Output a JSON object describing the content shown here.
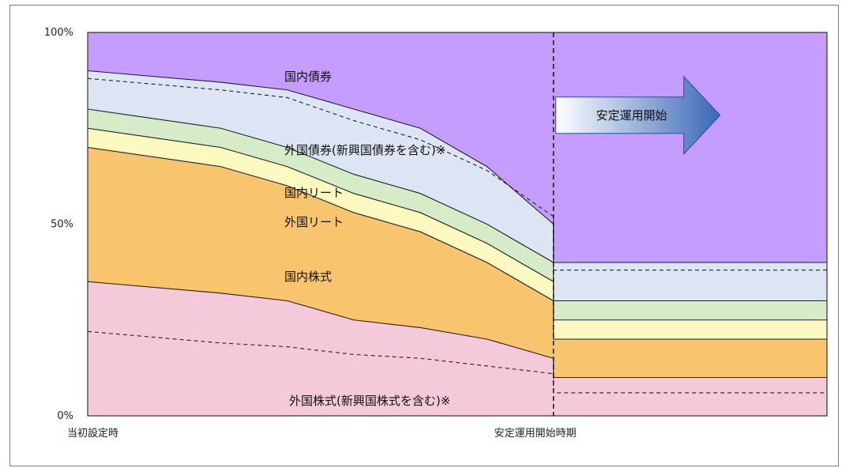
{
  "chart_data": {
    "type": "area",
    "stacked": true,
    "title": "",
    "xlabel": "",
    "ylabel": "",
    "ylim": [
      0,
      100
    ],
    "y_ticks": [
      "0%",
      "50%",
      "100%"
    ],
    "x_tick_labels": [
      "当初設定時",
      "安定運用開始時期"
    ],
    "x": [
      0,
      0.18,
      0.27,
      0.36,
      0.45,
      0.54,
      0.63,
      1.0
    ],
    "series": [
      {
        "name": "外国株式(新興国株式を含む)※",
        "color": "#f4c9d9",
        "values": [
          35,
          32,
          30,
          25,
          23,
          20,
          15,
          10
        ]
      },
      {
        "name": "国内株式",
        "color": "#f9c46e",
        "values": [
          35,
          33,
          30,
          28,
          25,
          20,
          15,
          10
        ]
      },
      {
        "name": "外国リート",
        "color": "#fbf8c0",
        "values": [
          5,
          5,
          5,
          5,
          5,
          5,
          5,
          5
        ]
      },
      {
        "name": "国内リート",
        "color": "#d6ebc8",
        "values": [
          5,
          5,
          5,
          5,
          5,
          5,
          5,
          5
        ]
      },
      {
        "name": "外国債券(新興国債券を含む)※",
        "color": "#dde5f4",
        "values": [
          10,
          12,
          15,
          17,
          17,
          15,
          10,
          10
        ]
      },
      {
        "name": "国内債券",
        "color": "#c59cff",
        "values": [
          10,
          13,
          15,
          20,
          25,
          35,
          50,
          60
        ]
      }
    ],
    "emerging_split": {
      "stock_line": [
        22,
        19,
        18,
        16,
        15,
        13,
        11,
        6
      ],
      "bond_line": [
        88,
        85,
        83,
        77,
        72,
        64,
        52,
        38
      ]
    },
    "annotation": "安定運用開始",
    "arrow_color": "#3a67b8"
  }
}
